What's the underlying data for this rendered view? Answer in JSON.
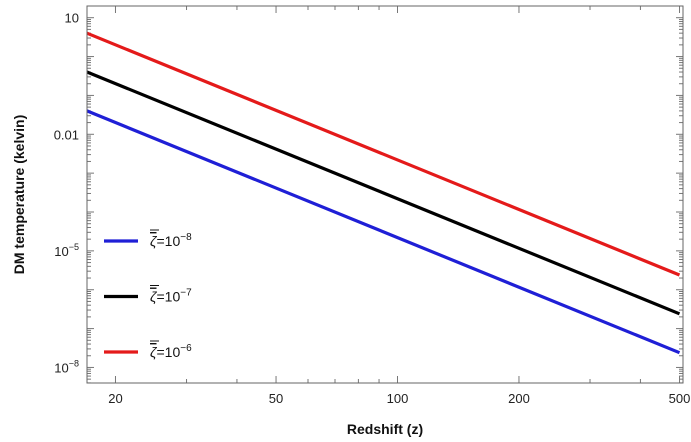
{
  "chart_data": {
    "type": "line",
    "title": "",
    "xlabel": "Redshift (z)",
    "ylabel": "DM temperature (kelvin)",
    "xscale": "log",
    "yscale": "log",
    "xlim": [
      17,
      510
    ],
    "ylim": [
      3.98e-09,
      20
    ],
    "grid": false,
    "legend_position": "lower-left",
    "x_ticks": [
      {
        "value": 20,
        "label": "20"
      },
      {
        "value": 50,
        "label": "50"
      },
      {
        "value": 100,
        "label": "100"
      },
      {
        "value": 200,
        "label": "200"
      },
      {
        "value": 500,
        "label": "500"
      }
    ],
    "y_ticks": [
      {
        "value": 1e-08,
        "base": "10",
        "exp": "−8"
      },
      {
        "value": 1e-05,
        "base": "10",
        "exp": "−5"
      },
      {
        "value": 0.01,
        "label": "0.01"
      },
      {
        "value": 10,
        "label": "10"
      }
    ],
    "series": [
      {
        "name": "ζ=10^-8",
        "legend": {
          "symbol": "ζ",
          "base": "=10",
          "exp": "−8"
        },
        "color": "#1f1fd6",
        "x": [
          17,
          500
        ],
        "y": [
          0.04,
          2.4e-08
        ]
      },
      {
        "name": "ζ=10^-7",
        "legend": {
          "symbol": "ζ",
          "base": "=10",
          "exp": "−7"
        },
        "color": "#000000",
        "x": [
          17,
          500
        ],
        "y": [
          0.4,
          2.4e-07
        ]
      },
      {
        "name": "ζ=10^-6",
        "legend": {
          "symbol": "ζ",
          "base": "=10",
          "exp": "−6"
        },
        "color": "#e41a1a",
        "x": [
          17,
          500
        ],
        "y": [
          4.0,
          2.4e-06
        ]
      }
    ]
  }
}
